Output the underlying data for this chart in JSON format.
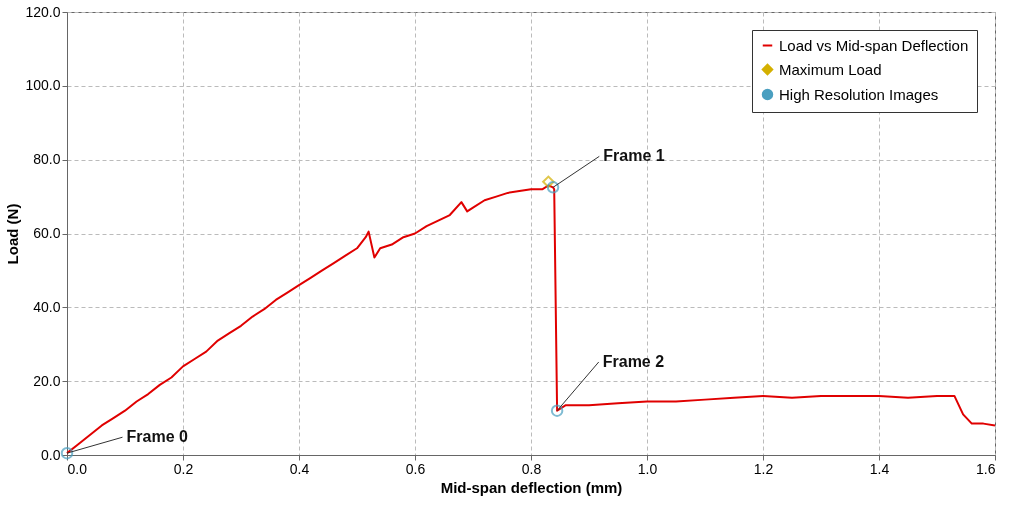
{
  "chart_data": {
    "type": "line",
    "xlabel": "Mid-span deflection (mm)",
    "ylabel": "Load (N)",
    "xlim": [
      0,
      1.6
    ],
    "xticks": [
      {
        "value": 0,
        "label": "0.0"
      },
      0.2,
      0.4,
      0.6,
      0.8,
      {
        "value": 1,
        "label": "1.0"
      },
      1.2,
      1.4,
      1.6
    ],
    "ylim": [
      0,
      120
    ],
    "yticks": [
      {
        "value": 0,
        "label": "0.0"
      },
      {
        "value": 20,
        "label": "20.0"
      },
      {
        "value": 40,
        "label": "40.0"
      },
      {
        "value": 60,
        "label": "60.0"
      },
      {
        "value": 80,
        "label": "80.0"
      },
      {
        "value": 100,
        "label": "100.0"
      },
      {
        "value": 120,
        "label": "120.0"
      }
    ],
    "grid": true,
    "legend": "top right",
    "series": [
      {
        "name": "Load vs Mid-span Deflection",
        "color": "#e00000",
        "line_style": "solid",
        "x": [
          0,
          0.02,
          0.04,
          0.06,
          0.08,
          0.1,
          0.12,
          0.14,
          0.16,
          0.18,
          0.2,
          0.22,
          0.24,
          0.26,
          0.28,
          0.3,
          0.32,
          0.34,
          0.36,
          0.38,
          0.4,
          0.42,
          0.44,
          0.46,
          0.48,
          0.5,
          0.515,
          0.52,
          0.53,
          0.54,
          0.56,
          0.58,
          0.6,
          0.62,
          0.64,
          0.66,
          0.68,
          0.69,
          0.7,
          0.72,
          0.74,
          0.76,
          0.78,
          0.8,
          0.82,
          0.83,
          0.838,
          0.84,
          0.845,
          0.86,
          0.9,
          0.95,
          1.0,
          1.05,
          1.1,
          1.15,
          1.2,
          1.25,
          1.3,
          1.35,
          1.4,
          1.45,
          1.5,
          1.53,
          1.545,
          1.56,
          1.58,
          1.6
        ],
        "values": [
          0.5,
          3,
          5.5,
          8,
          10,
          12,
          14.5,
          16.5,
          19,
          21,
          24,
          26,
          28,
          31,
          33,
          35,
          37.5,
          39.5,
          42,
          44,
          46,
          48,
          50,
          52,
          54,
          56,
          59,
          60.5,
          53.5,
          56,
          57,
          59,
          60,
          62,
          63.5,
          65,
          68.5,
          66,
          67,
          69,
          70,
          71,
          71.5,
          72,
          72,
          73,
          72.5,
          72,
          12,
          13.5,
          13.5,
          14,
          14.5,
          14.5,
          15,
          15.5,
          16,
          15.5,
          16,
          16,
          16,
          15.5,
          16,
          16,
          11,
          8.5,
          8.5,
          8
        ]
      },
      {
        "name": "Maximum Load",
        "color": "#d4b000",
        "type": "scatter",
        "marker": "diamond",
        "x": [
          0.83
        ],
        "values": [
          74
        ]
      },
      {
        "name": "High Resolution Images",
        "color": "#4a9fc0",
        "type": "scatter",
        "marker": "circle",
        "x": [
          0.0,
          0.838,
          0.845
        ],
        "values": [
          0.5,
          72.5,
          12
        ]
      }
    ],
    "annotations": [
      {
        "text": "Frame 0",
        "x": 0.0,
        "y": 0.5
      },
      {
        "text": "Frame 1",
        "x": 0.838,
        "y": 72.5
      },
      {
        "text": "Frame 2",
        "x": 0.845,
        "y": 12
      }
    ]
  }
}
